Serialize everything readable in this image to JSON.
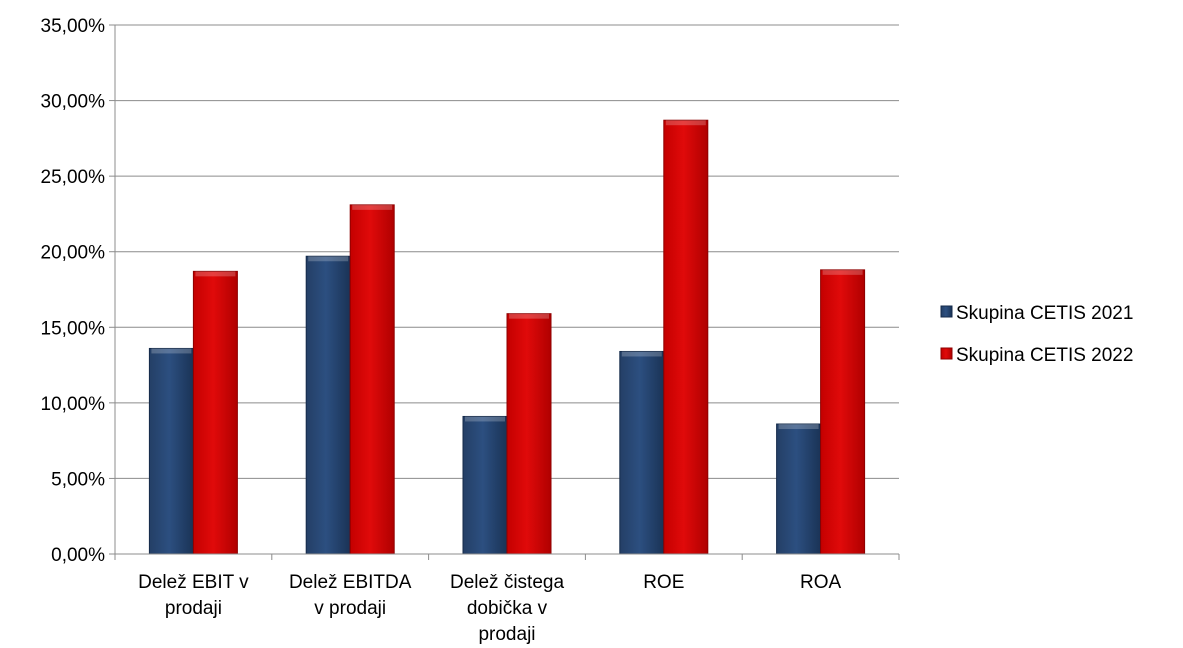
{
  "chart_data": {
    "type": "bar",
    "categories": [
      [
        "Delež EBIT v",
        "prodaji"
      ],
      [
        "Delež EBITDA",
        "v prodaji"
      ],
      [
        "Delež čistega",
        "dobička v",
        "prodaji"
      ],
      [
        "ROE"
      ],
      [
        "ROA"
      ]
    ],
    "series": [
      {
        "name": "Skupina CETIS 2021",
        "color": "#1f3f6b",
        "values": [
          13.6,
          19.7,
          9.1,
          13.4,
          8.6
        ]
      },
      {
        "name": "Skupina CETIS 2022",
        "color": "#cc0000",
        "values": [
          18.7,
          23.1,
          15.9,
          28.7,
          18.8
        ]
      }
    ],
    "yticks": [
      "0,00%",
      "5,00%",
      "10,00%",
      "15,00%",
      "20,00%",
      "25,00%",
      "30,00%",
      "35,00%"
    ],
    "ylim": [
      0,
      35
    ],
    "grid": true,
    "legend_position": "right",
    "title": "",
    "xlabel": "",
    "ylabel": ""
  }
}
